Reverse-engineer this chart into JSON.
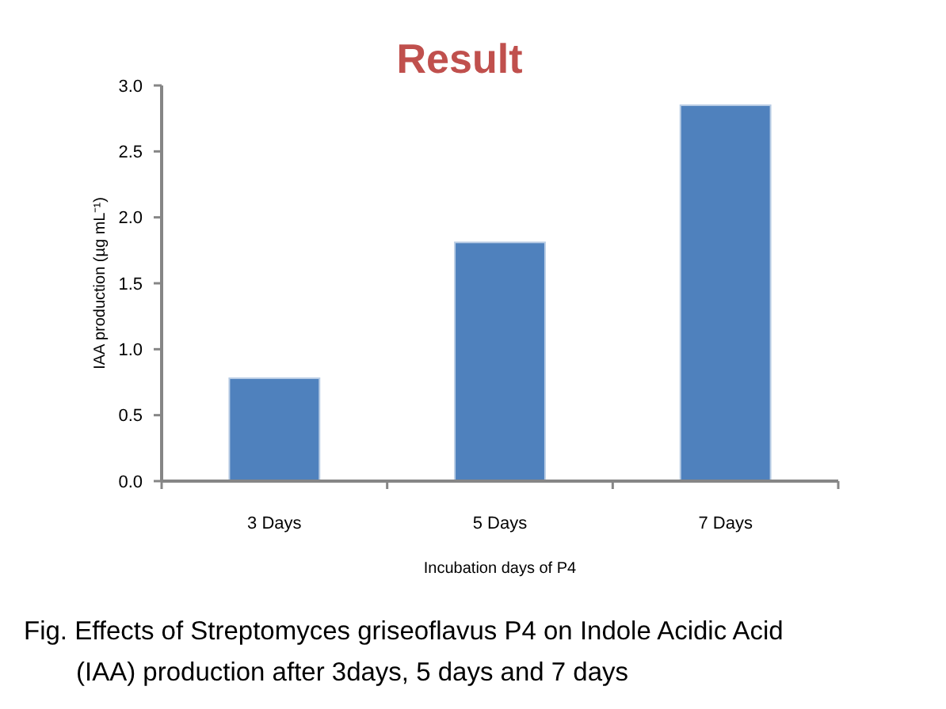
{
  "chart_data": {
    "type": "bar",
    "title": "Result",
    "xlabel": "Incubation days of P4",
    "ylabel": "IAA production (µg mL⁻¹)",
    "categories": [
      "3 Days",
      "5 Days",
      "7 Days"
    ],
    "values": [
      0.78,
      1.81,
      2.85
    ],
    "color": "#4f81bd",
    "ylim": [
      0,
      3
    ],
    "yticks": [
      {
        "value": 0,
        "label": "0.0"
      },
      0.5,
      {
        "value": 1,
        "label": "1.0"
      },
      1.5,
      {
        "value": 2,
        "label": "2.0"
      },
      2.5,
      {
        "value": 3,
        "label": "3.0"
      }
    ],
    "annotations": [
      "Fig. Effects of Streptomyces griseoflavus P4 on Indole Acidic Acid (IAA) production after 3days, 5 days and 7 days"
    ]
  }
}
